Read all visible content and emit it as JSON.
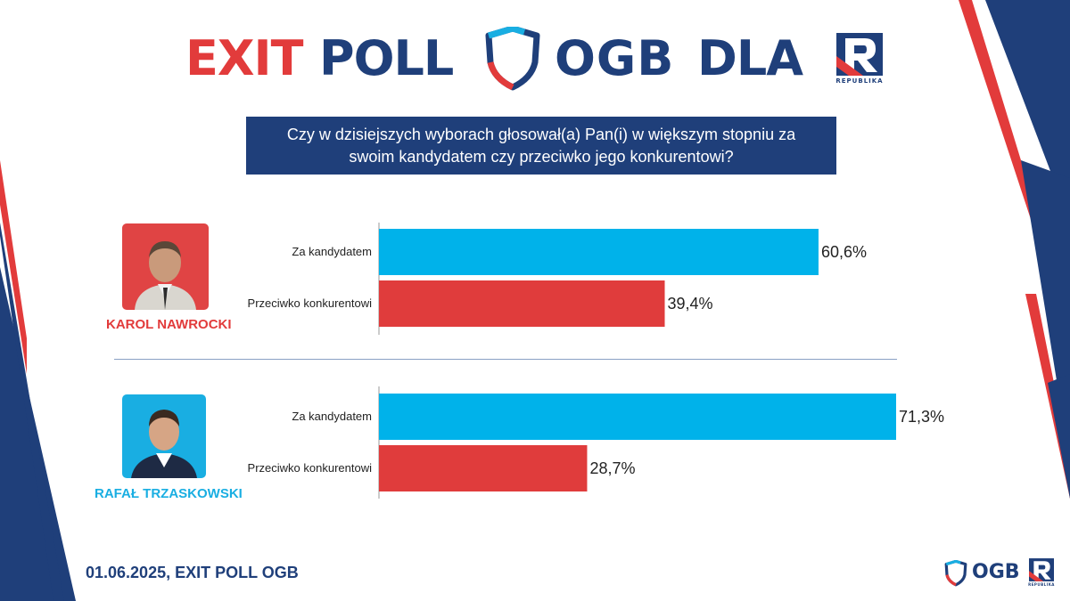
{
  "header": {
    "exit_word": "EXIT",
    "poll_word": "POLL",
    "ogb_word": "OGB",
    "dla_word": "DLA",
    "republika_caption": "REPUBLIKA"
  },
  "question": {
    "line1": "Czy w dzisiejszych wyborach głosował(a) Pan(i) w większym  stopniu za",
    "line2": "swoim kandydatem czy przeciwko jego konkurentowi?"
  },
  "candidates": [
    {
      "name": "KAROL NAWROCKI",
      "name_color": "#e23b3b",
      "photo_bg": "#e04444"
    },
    {
      "name": "RAFAŁ TRZASKOWSKI",
      "name_color": "#19aee2",
      "photo_bg": "#19aee2"
    }
  ],
  "chart_data": [
    {
      "type": "bar",
      "orientation": "horizontal",
      "candidate": "KAROL NAWROCKI",
      "categories": [
        "Za kandydatem",
        "Przeciwko konkurentowi"
      ],
      "values": [
        60.6,
        39.4
      ],
      "value_labels": [
        "60,6%",
        "39,4%"
      ],
      "colors": [
        "#00b2ea",
        "#e03c3c"
      ],
      "xlim": [
        0,
        71.3
      ],
      "grid": false
    },
    {
      "type": "bar",
      "orientation": "horizontal",
      "candidate": "RAFAŁ TRZASKOWSKI",
      "categories": [
        "Za kandydatem",
        "Przeciwko konkurentowi"
      ],
      "values": [
        71.3,
        28.7
      ],
      "value_labels": [
        "71,3%",
        "28,7%"
      ],
      "colors": [
        "#00b2ea",
        "#e03c3c"
      ],
      "xlim": [
        0,
        71.3
      ],
      "grid": false
    }
  ],
  "footer": {
    "text": "01.06.2025, EXIT POLL OGB",
    "ogb_label": "OGB",
    "republika_caption": "REPUBLIKA"
  },
  "colors": {
    "navy": "#1f3f7a",
    "red": "#e23b3b",
    "cyan": "#00b2ea"
  }
}
